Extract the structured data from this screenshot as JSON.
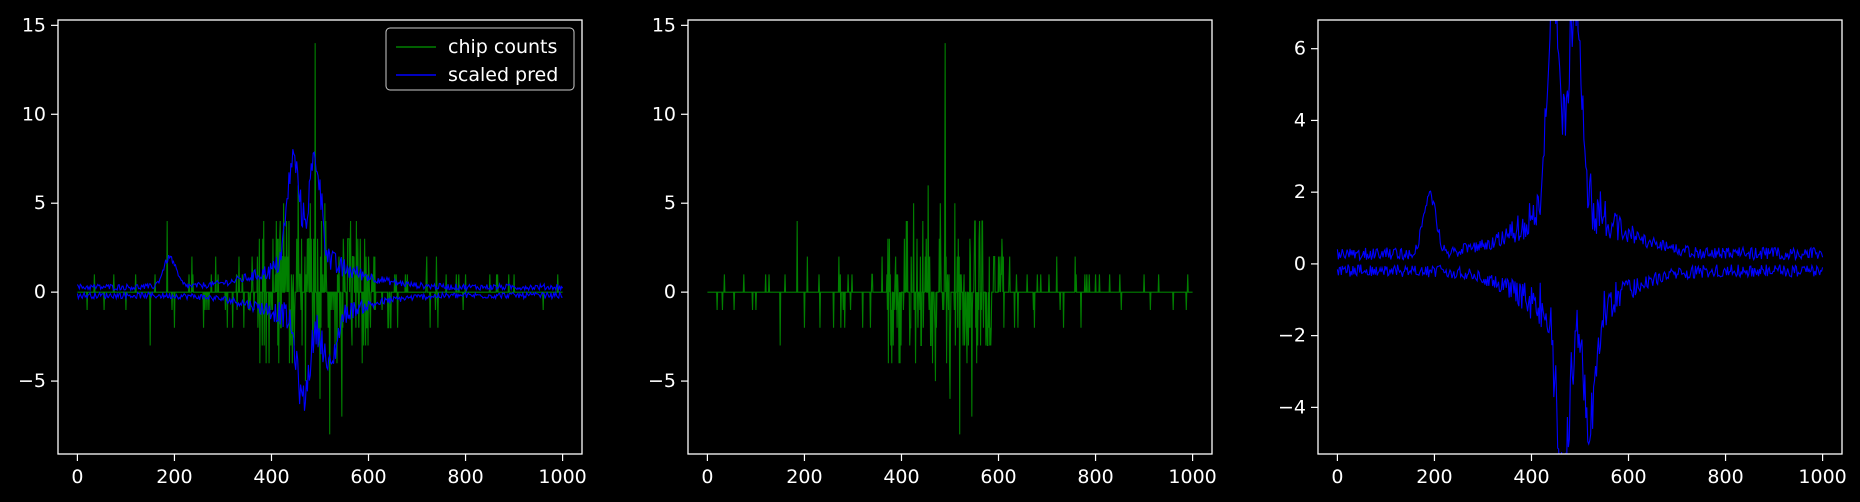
{
  "chart_data": [
    {
      "type": "line",
      "title": "",
      "xlabel": "",
      "ylabel": "",
      "xlim": [
        -40,
        1040
      ],
      "ylim": [
        -9.1,
        15.3
      ],
      "xticks": [
        0,
        200,
        400,
        600,
        800,
        1000
      ],
      "yticks": [
        -5,
        0,
        5,
        10,
        15
      ],
      "grid": false,
      "legend": {
        "placement": "upper-right",
        "entries": [
          {
            "label": "chip counts",
            "color": "#008000"
          },
          {
            "label": "scaled pred",
            "color": "#0000ff"
          }
        ]
      },
      "series": [
        {
          "name": "chip counts",
          "color": "#008000",
          "x_range": [
            0,
            1000
          ],
          "kind": "sparse_integer_spikes",
          "baseline": 0,
          "spikes": [
            [
              20,
              -1
            ],
            [
              35,
              1
            ],
            [
              55,
              -1
            ],
            [
              75,
              1
            ],
            [
              100,
              -1
            ],
            [
              120,
              1
            ],
            [
              150,
              -3
            ],
            [
              160,
              1
            ],
            [
              185,
              4
            ],
            [
              200,
              -2
            ],
            [
              230,
              1
            ],
            [
              260,
              -2
            ],
            [
              290,
              1
            ],
            [
              320,
              -2
            ],
            [
              340,
              1
            ],
            [
              360,
              2
            ],
            [
              375,
              3
            ],
            [
              395,
              -4
            ],
            [
              410,
              4
            ],
            [
              425,
              5
            ],
            [
              440,
              -3
            ],
            [
              455,
              6
            ],
            [
              470,
              -5
            ],
            [
              480,
              5
            ],
            [
              490,
              14
            ],
            [
              500,
              -6
            ],
            [
              510,
              5
            ],
            [
              520,
              -8
            ],
            [
              535,
              -4
            ],
            [
              545,
              -7
            ],
            [
              560,
              3
            ],
            [
              580,
              -2
            ],
            [
              600,
              2
            ],
            [
              640,
              -2
            ],
            [
              680,
              1
            ],
            [
              720,
              2
            ],
            [
              760,
              1
            ],
            [
              800,
              1
            ],
            [
              850,
              1
            ],
            [
              900,
              1
            ],
            [
              960,
              -1
            ],
            [
              990,
              1
            ]
          ]
        },
        {
          "name": "scaled pred",
          "color": "#0000ff",
          "x_range": [
            0,
            1000
          ],
          "kind": "two_branch_envelope",
          "upper_peaks": [
            [
              190,
              1.9
            ],
            [
              445,
              6.2
            ],
            [
              490,
              6.1
            ]
          ],
          "lower_peaks": [
            [
              465,
              -4.8
            ],
            [
              520,
              -3.1
            ]
          ]
        }
      ]
    },
    {
      "type": "line",
      "title": "",
      "xlabel": "",
      "ylabel": "",
      "xlim": [
        -40,
        1040
      ],
      "ylim": [
        -9.1,
        15.3
      ],
      "xticks": [
        0,
        200,
        400,
        600,
        800,
        1000
      ],
      "yticks": [
        -5,
        0,
        5,
        10,
        15
      ],
      "grid": false,
      "series": [
        {
          "color": "#008000",
          "x_range": [
            0,
            1000
          ],
          "kind": "sparse_integer_spikes",
          "baseline": 0,
          "spikes": [
            [
              20,
              -1
            ],
            [
              35,
              1
            ],
            [
              55,
              -1
            ],
            [
              75,
              1
            ],
            [
              100,
              -1
            ],
            [
              120,
              1
            ],
            [
              150,
              -3
            ],
            [
              160,
              1
            ],
            [
              185,
              4
            ],
            [
              200,
              -2
            ],
            [
              230,
              1
            ],
            [
              260,
              -2
            ],
            [
              290,
              1
            ],
            [
              320,
              -2
            ],
            [
              340,
              1
            ],
            [
              360,
              2
            ],
            [
              375,
              3
            ],
            [
              395,
              -4
            ],
            [
              410,
              4
            ],
            [
              425,
              5
            ],
            [
              440,
              -3
            ],
            [
              455,
              6
            ],
            [
              470,
              -5
            ],
            [
              480,
              5
            ],
            [
              490,
              14
            ],
            [
              500,
              -6
            ],
            [
              510,
              5
            ],
            [
              520,
              -8
            ],
            [
              535,
              -4
            ],
            [
              545,
              -7
            ],
            [
              560,
              3
            ],
            [
              580,
              -2
            ],
            [
              600,
              2
            ],
            [
              640,
              -2
            ],
            [
              680,
              1
            ],
            [
              720,
              2
            ],
            [
              760,
              1
            ],
            [
              800,
              1
            ],
            [
              850,
              1
            ],
            [
              900,
              1
            ],
            [
              960,
              -1
            ],
            [
              990,
              1
            ]
          ]
        }
      ]
    },
    {
      "type": "line",
      "title": "",
      "xlabel": "",
      "ylabel": "",
      "xlim": [
        -40,
        1040
      ],
      "ylim": [
        -5.3,
        6.8
      ],
      "xticks": [
        0,
        200,
        400,
        600,
        800,
        1000
      ],
      "yticks": [
        -4,
        -2,
        0,
        2,
        4,
        6
      ],
      "grid": false,
      "series": [
        {
          "color": "#0000ff",
          "x_range": [
            0,
            1000
          ],
          "kind": "two_branch_envelope",
          "upper_peaks": [
            [
              190,
              1.9
            ],
            [
              445,
              6.2
            ],
            [
              490,
              6.1
            ]
          ],
          "lower_peaks": [
            [
              465,
              -4.8
            ],
            [
              520,
              -3.1
            ]
          ]
        }
      ]
    }
  ]
}
